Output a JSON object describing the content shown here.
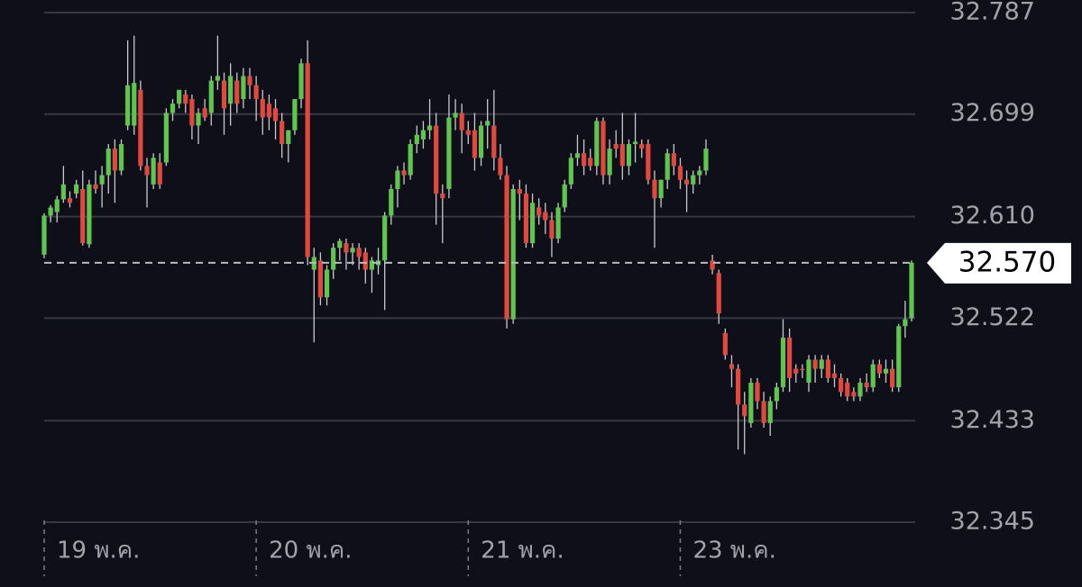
{
  "chart_data": {
    "type": "candlestick",
    "up_color": "#5ec64f",
    "down_color": "#e2493e",
    "grid": true,
    "ylim": [
      32.345,
      32.787
    ],
    "yticks": [
      32.345,
      32.433,
      32.522,
      {
        "value": 32.61,
        "label": "32.610"
      },
      32.699,
      32.787
    ],
    "xticks": [
      {
        "value": 0,
        "label": "19 พ.ค."
      },
      {
        "value": 33,
        "label": "20 พ.ค."
      },
      {
        "value": 66,
        "label": "21 พ.ค."
      },
      {
        "value": 99,
        "label": "23 พ.ค."
      }
    ],
    "last_price": {
      "value": 32.57,
      "label": "32.570"
    },
    "ohlc": [
      [
        32.577,
        32.613,
        32.574,
        32.611
      ],
      [
        32.611,
        32.62,
        32.605,
        32.618
      ],
      [
        32.614,
        32.628,
        32.605,
        32.625
      ],
      [
        32.625,
        32.654,
        32.622,
        32.638
      ],
      [
        32.626,
        32.632,
        32.618,
        32.622
      ],
      [
        32.63,
        32.642,
        32.626,
        32.638
      ],
      [
        32.634,
        32.65,
        32.585,
        32.587
      ],
      [
        32.586,
        32.642,
        32.583,
        32.638
      ],
      [
        32.638,
        32.65,
        32.63,
        32.634
      ],
      [
        32.638,
        32.654,
        32.618,
        32.646
      ],
      [
        32.646,
        32.673,
        32.63,
        32.669
      ],
      [
        32.669,
        32.677,
        32.622,
        32.65
      ],
      [
        32.65,
        32.677,
        32.646,
        32.673
      ],
      [
        32.689,
        32.763,
        32.685,
        32.724
      ],
      [
        32.689,
        32.767,
        32.681,
        32.726
      ],
      [
        32.72,
        32.728,
        32.65,
        32.654
      ],
      [
        32.654,
        32.661,
        32.618,
        32.646
      ],
      [
        32.638,
        32.665,
        32.634,
        32.661
      ],
      [
        32.657,
        32.665,
        32.634,
        32.638
      ],
      [
        32.657,
        32.704,
        32.654,
        32.7
      ],
      [
        32.7,
        32.712,
        32.693,
        32.708
      ],
      [
        32.708,
        32.72,
        32.704,
        32.72
      ],
      [
        32.716,
        32.72,
        32.7,
        32.708
      ],
      [
        32.712,
        32.716,
        32.677,
        32.689
      ],
      [
        32.689,
        32.704,
        32.673,
        32.7
      ],
      [
        32.704,
        32.712,
        32.693,
        32.696
      ],
      [
        32.7,
        32.732,
        32.689,
        32.728
      ],
      [
        32.728,
        32.767,
        32.72,
        32.732
      ],
      [
        32.728,
        32.735,
        32.681,
        32.704
      ],
      [
        32.708,
        32.743,
        32.689,
        32.732
      ],
      [
        32.728,
        32.735,
        32.7,
        32.708
      ],
      [
        32.712,
        32.739,
        32.704,
        32.732
      ],
      [
        32.732,
        32.739,
        32.712,
        32.724
      ],
      [
        32.724,
        32.732,
        32.693,
        32.712
      ],
      [
        32.712,
        32.72,
        32.681,
        32.696
      ],
      [
        32.708,
        32.716,
        32.685,
        32.696
      ],
      [
        32.704,
        32.712,
        32.677,
        32.693
      ],
      [
        32.693,
        32.7,
        32.661,
        32.673
      ],
      [
        32.673,
        32.685,
        32.657,
        32.685
      ],
      [
        32.685,
        32.712,
        32.681,
        32.712
      ],
      [
        32.712,
        32.747,
        32.704,
        32.743
      ],
      [
        32.743,
        32.763,
        32.568,
        32.575
      ],
      [
        32.564,
        32.583,
        32.501,
        32.575
      ],
      [
        32.572,
        32.579,
        32.533,
        32.54
      ],
      [
        32.54,
        32.568,
        32.533,
        32.564
      ],
      [
        32.564,
        32.587,
        32.556,
        32.583
      ],
      [
        32.583,
        32.591,
        32.572,
        32.589
      ],
      [
        32.587,
        32.591,
        32.564,
        32.579
      ],
      [
        32.579,
        32.587,
        32.568,
        32.583
      ],
      [
        32.583,
        32.587,
        32.564,
        32.575
      ],
      [
        32.579,
        32.583,
        32.552,
        32.564
      ],
      [
        32.564,
        32.575,
        32.544,
        32.572
      ],
      [
        32.568,
        32.583,
        32.56,
        32.572
      ],
      [
        32.572,
        32.614,
        32.529,
        32.611
      ],
      [
        32.611,
        32.638,
        32.603,
        32.634
      ],
      [
        32.634,
        32.654,
        32.618,
        32.65
      ],
      [
        32.65,
        32.657,
        32.638,
        32.646
      ],
      [
        32.646,
        32.677,
        32.642,
        32.673
      ],
      [
        32.673,
        32.689,
        32.665,
        32.681
      ],
      [
        32.677,
        32.693,
        32.669,
        32.685
      ],
      [
        32.685,
        32.712,
        32.677,
        32.689
      ],
      [
        32.689,
        32.7,
        32.603,
        32.63
      ],
      [
        32.63,
        32.638,
        32.587,
        32.626
      ],
      [
        32.634,
        32.716,
        32.626,
        32.696
      ],
      [
        32.696,
        32.712,
        32.685,
        32.7
      ],
      [
        32.7,
        32.708,
        32.665,
        32.685
      ],
      [
        32.685,
        32.693,
        32.673,
        32.681
      ],
      [
        32.685,
        32.7,
        32.65,
        32.661
      ],
      [
        32.661,
        32.693,
        32.654,
        32.689
      ],
      [
        32.689,
        32.712,
        32.669,
        32.693
      ],
      [
        32.689,
        32.72,
        32.65,
        32.661
      ],
      [
        32.661,
        32.673,
        32.642,
        32.646
      ],
      [
        32.646,
        32.654,
        32.513,
        32.521
      ],
      [
        32.521,
        32.638,
        32.517,
        32.634
      ],
      [
        32.634,
        32.642,
        32.607,
        32.63
      ],
      [
        32.63,
        32.638,
        32.583,
        32.587
      ],
      [
        32.587,
        32.63,
        32.583,
        32.622
      ],
      [
        32.618,
        32.626,
        32.603,
        32.611
      ],
      [
        32.614,
        32.622,
        32.595,
        32.607
      ],
      [
        32.607,
        32.614,
        32.575,
        32.591
      ],
      [
        32.591,
        32.622,
        32.587,
        32.618
      ],
      [
        32.618,
        32.642,
        32.614,
        32.638
      ],
      [
        32.638,
        32.665,
        32.634,
        32.661
      ],
      [
        32.661,
        32.681,
        32.654,
        32.665
      ],
      [
        32.665,
        32.677,
        32.646,
        32.654
      ],
      [
        32.661,
        32.669,
        32.65,
        32.654
      ],
      [
        32.654,
        32.696,
        32.646,
        32.693
      ],
      [
        32.693,
        32.696,
        32.638,
        32.646
      ],
      [
        32.646,
        32.677,
        32.638,
        32.669
      ],
      [
        32.673,
        32.685,
        32.661,
        32.669
      ],
      [
        32.673,
        32.7,
        32.642,
        32.654
      ],
      [
        32.654,
        32.677,
        32.646,
        32.673
      ],
      [
        32.673,
        32.7,
        32.657,
        32.675
      ],
      [
        32.673,
        32.677,
        32.661,
        32.669
      ],
      [
        32.673,
        32.677,
        32.638,
        32.642
      ],
      [
        32.642,
        32.65,
        32.583,
        32.626
      ],
      [
        32.626,
        32.642,
        32.618,
        32.642
      ],
      [
        32.642,
        32.669,
        32.634,
        32.665
      ],
      [
        32.665,
        32.673,
        32.646,
        32.654
      ],
      [
        32.654,
        32.661,
        32.634,
        32.642
      ],
      [
        32.642,
        32.65,
        32.614,
        32.638
      ],
      [
        32.638,
        32.65,
        32.63,
        32.646
      ],
      [
        32.646,
        32.654,
        32.638,
        32.65
      ],
      [
        32.65,
        32.677,
        32.646,
        32.669
      ],
      [
        32.572,
        32.577,
        32.56,
        32.564
      ],
      [
        32.561,
        32.564,
        32.517,
        32.526
      ],
      [
        32.509,
        32.513,
        32.486,
        32.49
      ],
      [
        32.482,
        32.49,
        32.462,
        32.478
      ],
      [
        32.478,
        32.482,
        32.408,
        32.447
      ],
      [
        32.447,
        32.458,
        32.404,
        32.437
      ],
      [
        32.431,
        32.47,
        32.427,
        32.466
      ],
      [
        32.466,
        32.47,
        32.443,
        32.45
      ],
      [
        32.45,
        32.458,
        32.427,
        32.431
      ],
      [
        32.431,
        32.454,
        32.42,
        32.45
      ],
      [
        32.45,
        32.466,
        32.443,
        32.462
      ],
      [
        32.462,
        32.521,
        32.458,
        32.505
      ],
      [
        32.505,
        32.513,
        32.458,
        32.47
      ],
      [
        32.478,
        32.482,
        32.466,
        32.474
      ],
      [
        32.478,
        32.482,
        32.47,
        32.477
      ],
      [
        32.466,
        32.49,
        32.458,
        32.486
      ],
      [
        32.486,
        32.49,
        32.466,
        32.478
      ],
      [
        32.478,
        32.49,
        32.47,
        32.486
      ],
      [
        32.486,
        32.49,
        32.466,
        32.47
      ],
      [
        32.474,
        32.482,
        32.462,
        32.47
      ],
      [
        32.47,
        32.474,
        32.454,
        32.458
      ],
      [
        32.466,
        32.47,
        32.45,
        32.454
      ],
      [
        32.458,
        32.462,
        32.45,
        32.454
      ],
      [
        32.454,
        32.47,
        32.45,
        32.466
      ],
      [
        32.466,
        32.474,
        32.458,
        32.462
      ],
      [
        32.462,
        32.486,
        32.458,
        32.482
      ],
      [
        32.482,
        32.486,
        32.47,
        32.474
      ],
      [
        32.474,
        32.486,
        32.466,
        32.478
      ],
      [
        32.478,
        32.486,
        32.458,
        32.462
      ],
      [
        32.462,
        32.517,
        32.458,
        32.515
      ],
      [
        32.515,
        32.537,
        32.505,
        32.521
      ],
      [
        32.522,
        32.572,
        32.519,
        32.57
      ]
    ]
  }
}
